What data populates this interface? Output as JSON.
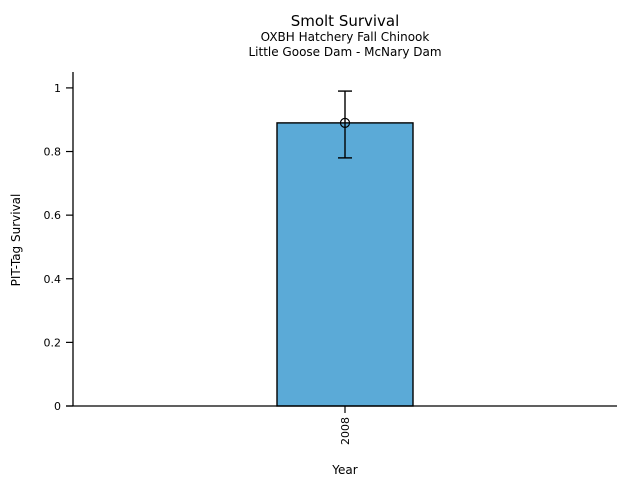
{
  "chart_data": {
    "type": "bar",
    "title": "Smolt Survival",
    "subtitle_line1": "OXBH Hatchery Fall Chinook",
    "subtitle_line2": "Little Goose Dam - McNary Dam",
    "xlabel": "Year",
    "ylabel": "PIT-Tag Survival",
    "categories": [
      "2008"
    ],
    "values": [
      0.89
    ],
    "error_low": [
      0.78
    ],
    "error_high": [
      0.99
    ],
    "yticks": [
      0,
      0.2,
      0.4,
      0.6,
      0.8,
      1
    ],
    "ylim": [
      0,
      1.05
    ],
    "grid": false,
    "legend": false,
    "marker": "open-circle",
    "colors": {
      "bar_fill": "#5BAAD7",
      "bar_edge": "#000000",
      "error_bar": "#000000",
      "axis": "#000000",
      "background": "#ffffff"
    }
  }
}
